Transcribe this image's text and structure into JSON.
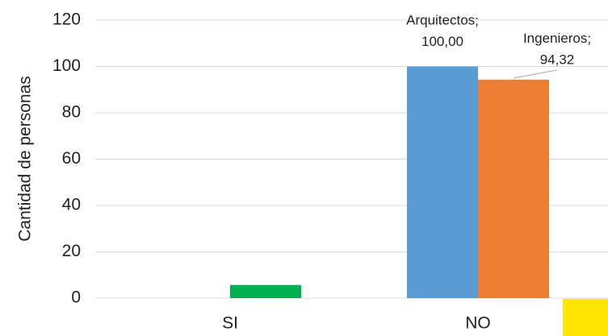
{
  "chart_data": {
    "type": "bar",
    "y_label": "Cantidad de personas",
    "categories": [
      "SI",
      "NO"
    ],
    "series": [
      {
        "name": "Arquitectos",
        "color": "#5b9bd5",
        "values": [
          0,
          100
        ],
        "value_labels": [
          null,
          "100,00"
        ]
      },
      {
        "name": "Ingenieros",
        "color": "#ed7d31",
        "values": [
          0,
          94.32
        ],
        "value_labels": [
          null,
          "94,32"
        ]
      },
      {
        "color": "#00b050",
        "values": [
          5.68,
          null
        ]
      }
    ],
    "ylim": [
      0,
      120
    ],
    "yticks": [
      0,
      20,
      40,
      60,
      80,
      100,
      120
    ],
    "grid": true
  }
}
